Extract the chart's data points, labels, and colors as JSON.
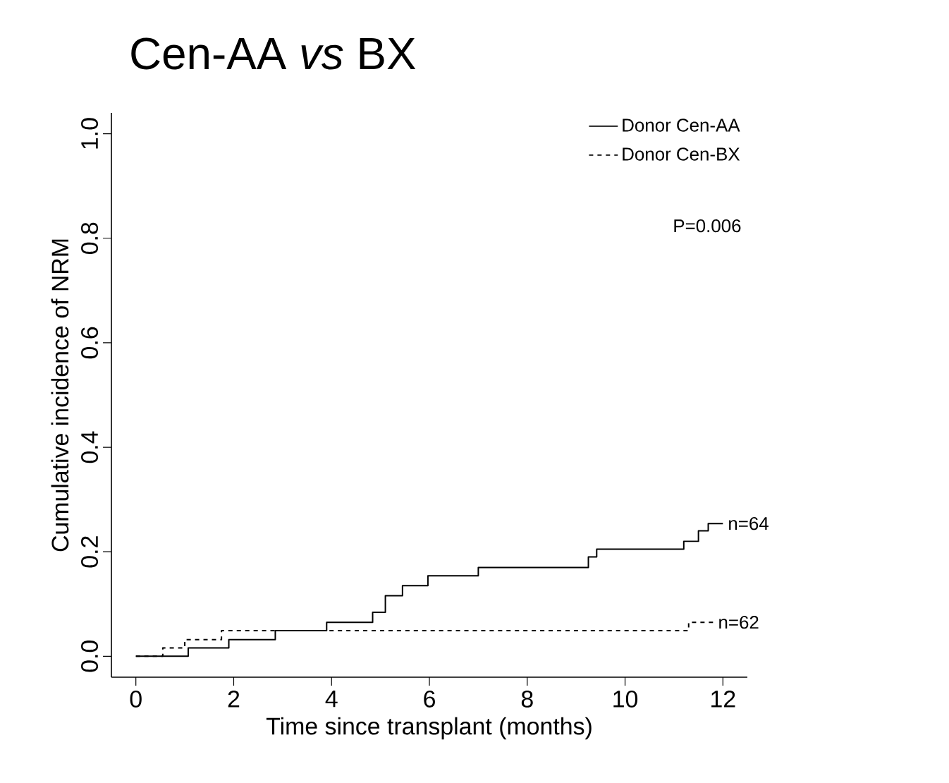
{
  "chart_data": {
    "type": "step",
    "title": "Cen-AA *vs* BX",
    "xlabel": "Time since transplant (months)",
    "ylabel": "Cumulative incidence of NRM",
    "xlim": [
      -0.5,
      12.5
    ],
    "ylim": [
      -0.04,
      1.04
    ],
    "xticks": [
      0,
      2,
      4,
      6,
      8,
      10,
      12
    ],
    "yticks": [
      {
        "value": 0,
        "label": "0.0"
      },
      {
        "value": 0.2,
        "label": "0.2"
      },
      {
        "value": 0.4,
        "label": "0.4"
      },
      {
        "value": 0.6,
        "label": "0.6"
      },
      {
        "value": 0.8,
        "label": "0.8"
      },
      {
        "value": 1,
        "label": "1.0"
      }
    ],
    "grid": false,
    "legend": "top right",
    "marker": "none",
    "series": [
      {
        "name": "Donor Cen-AA",
        "color": "#000000",
        "line_style": "solid",
        "x": [
          0,
          1.07,
          1.9,
          2.85,
          3.9,
          4.84,
          5.1,
          5.45,
          5.97,
          7.0,
          9.25,
          9.42,
          11.2,
          11.5,
          11.7,
          12.0
        ],
        "values": [
          0,
          0.016,
          0.032,
          0.049,
          0.065,
          0.084,
          0.116,
          0.135,
          0.154,
          0.17,
          0.19,
          0.205,
          0.22,
          0.24,
          0.254,
          0.254
        ]
      },
      {
        "name": "Donor Cen-BX",
        "color": "#000000",
        "line_style": "dashed",
        "x": [
          0,
          0.55,
          1.0,
          1.75,
          11.3,
          11.8
        ],
        "values": [
          0,
          0.016,
          0.032,
          0.049,
          0.065,
          0.065
        ]
      }
    ],
    "annotations": [
      "P=0.006",
      {
        "text": "n=64",
        "x": 12.0,
        "y": 0.254
      },
      {
        "text": "n=62",
        "x": 11.8,
        "y": 0.065
      }
    ]
  }
}
